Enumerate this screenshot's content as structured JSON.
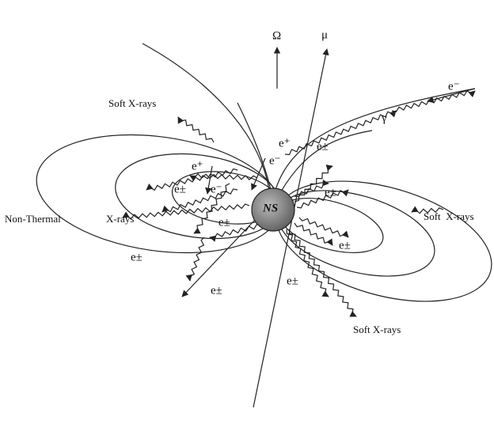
{
  "labels": [
    {
      "text": "Ω"
    },
    {
      "text": "μ"
    },
    {
      "text": "e⁻"
    },
    {
      "text": "γ"
    },
    {
      "text": "Soft X-rays"
    },
    {
      "text": "e⁺"
    },
    {
      "text": "e⁻"
    },
    {
      "text": "e±"
    },
    {
      "text": "e⁺"
    },
    {
      "text": "e±"
    },
    {
      "text": "e⁻"
    },
    {
      "text": "e±"
    },
    {
      "text": "e±"
    },
    {
      "text": "Non-Thermal"
    },
    {
      "text": "X-rays"
    },
    {
      "text": "NS"
    },
    {
      "text": "Soft  X-rays"
    },
    {
      "text": "e±"
    },
    {
      "text": "e±"
    },
    {
      "text": "e±"
    },
    {
      "text": "e±"
    },
    {
      "text": "Soft X-rays"
    }
  ]
}
